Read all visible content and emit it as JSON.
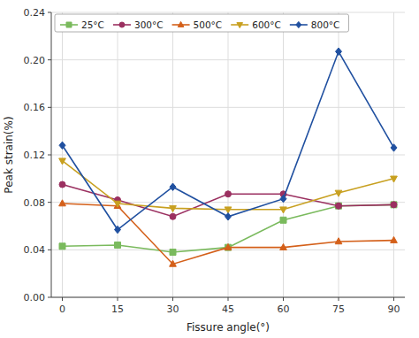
{
  "chart_data": {
    "type": "line",
    "xlabel": "Fissure angle(°)",
    "ylabel": "Peak strain(%)",
    "x": [
      0,
      15,
      30,
      45,
      60,
      75,
      90
    ],
    "series": [
      {
        "name": "25°C",
        "color": "#7aba5d",
        "marker": "square",
        "values": [
          0.043,
          0.044,
          0.038,
          0.042,
          0.065,
          0.077,
          0.078
        ]
      },
      {
        "name": "300°C",
        "color": "#9b3060",
        "marker": "circle",
        "values": [
          0.095,
          0.082,
          0.068,
          0.087,
          0.087,
          0.077,
          0.078
        ]
      },
      {
        "name": "500°C",
        "color": "#d4601a",
        "marker": "triangle-up",
        "values": [
          0.079,
          0.077,
          0.028,
          0.042,
          0.042,
          0.047,
          0.048
        ]
      },
      {
        "name": "600°C",
        "color": "#c8a020",
        "marker": "triangle-down",
        "values": [
          0.115,
          0.079,
          0.075,
          0.074,
          0.074,
          0.088,
          0.1
        ]
      },
      {
        "name": "800°C",
        "color": "#2050a0",
        "marker": "diamond",
        "values": [
          0.128,
          0.057,
          0.093,
          0.068,
          0.083,
          0.207,
          0.126
        ]
      }
    ],
    "xlim": [
      -3,
      93
    ],
    "xticks": [
      0,
      15,
      30,
      45,
      60,
      75,
      90
    ],
    "ylim": [
      0,
      0.24
    ],
    "yticks": [
      {
        "value": 0,
        "label": "0.00"
      },
      0.04,
      0.08,
      0.12,
      0.16,
      {
        "value": 0.2,
        "label": "0.20"
      },
      0.24
    ],
    "grid": true,
    "legend": "upper-left"
  }
}
